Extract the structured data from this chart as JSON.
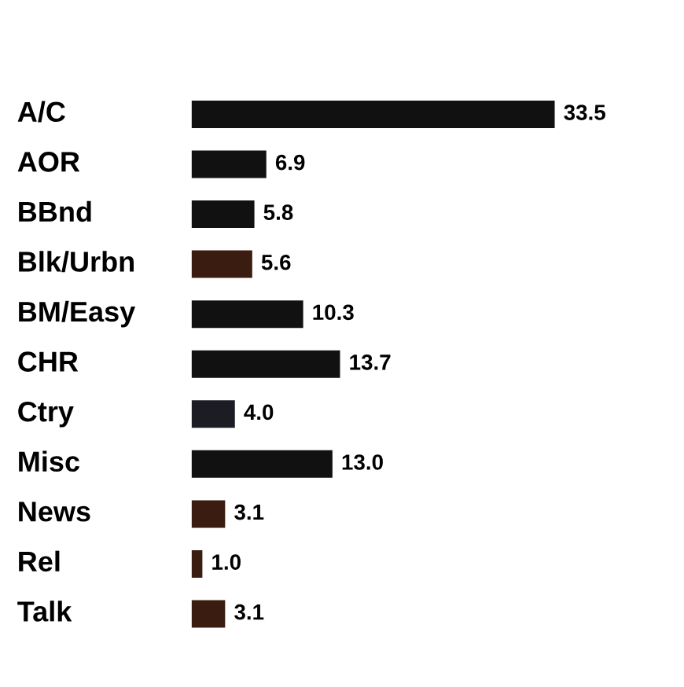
{
  "chart_data": {
    "type": "bar",
    "orientation": "horizontal",
    "categories": [
      "A/C",
      "AOR",
      "BBnd",
      "Blk/Urbn",
      "BM/Easy",
      "CHR",
      "Ctry",
      "Misc",
      "News",
      "Rel",
      "Talk"
    ],
    "values": [
      33.5,
      6.9,
      5.8,
      5.6,
      10.3,
      13.7,
      4.0,
      13.0,
      3.1,
      1.0,
      3.1
    ],
    "colors": [
      "#111111",
      "#111111",
      "#111111",
      "#3b1c10",
      "#111111",
      "#111111",
      "#1c1c24",
      "#111111",
      "#3b1c10",
      "#3b1c10",
      "#3b1c10"
    ],
    "value_labels": [
      "33.5",
      "6.9",
      "5.8",
      "5.6",
      "10.3",
      "13.7",
      "4.0",
      "13.0",
      "3.1",
      "1.0",
      "3.1"
    ]
  }
}
